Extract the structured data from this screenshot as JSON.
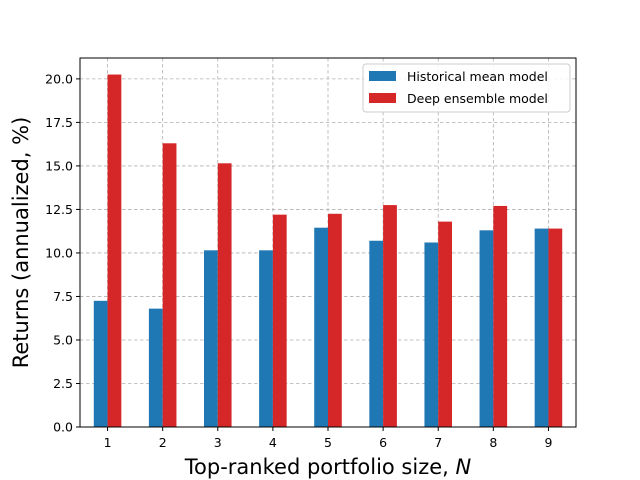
{
  "chart_data": {
    "type": "bar",
    "title": "",
    "xlabel": "Top-ranked portfolio size, ",
    "xlabel_italic": "N",
    "ylabel": "Returns (annualized, %)",
    "categories": [
      "1",
      "2",
      "3",
      "4",
      "5",
      "6",
      "7",
      "8",
      "9"
    ],
    "ylim": [
      0,
      21.2
    ],
    "yticks": [
      "0.0",
      "2.5",
      "5.0",
      "7.5",
      "10.0",
      "12.5",
      "15.0",
      "17.5",
      "20.0"
    ],
    "grid": true,
    "legend_position": "top-right",
    "series": [
      {
        "name": "Historical mean model",
        "color": "#1f77b4",
        "values": [
          7.25,
          6.8,
          10.15,
          10.15,
          11.45,
          10.7,
          10.6,
          11.3,
          11.4
        ]
      },
      {
        "name": "Deep ensemble model",
        "color": "#d62728",
        "values": [
          20.25,
          16.3,
          15.15,
          12.2,
          12.25,
          12.75,
          11.8,
          12.7,
          11.4
        ]
      }
    ]
  }
}
